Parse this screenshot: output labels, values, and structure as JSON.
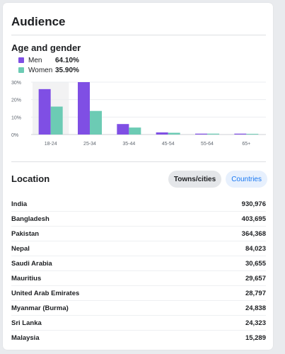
{
  "card": {
    "title": "Audience"
  },
  "age_gender": {
    "title": "Age and gender",
    "legend": [
      {
        "name": "Men",
        "value": "64.10%",
        "color": "#7f4fe4"
      },
      {
        "name": "Women",
        "value": "35.90%",
        "color": "#6ccbb4"
      }
    ]
  },
  "chart_data": {
    "type": "bar",
    "categories": [
      "18-24",
      "25-34",
      "35-44",
      "45-54",
      "55-64",
      "65+"
    ],
    "series": [
      {
        "name": "Men",
        "values": [
          26,
          30,
          6,
          1.2,
          0.5,
          0.5
        ],
        "color": "#7f4fe4"
      },
      {
        "name": "Women",
        "values": [
          16,
          13.5,
          4,
          1,
          0.5,
          0.4
        ],
        "color": "#6ccbb4"
      }
    ],
    "yticks": [
      "0%",
      "10%",
      "20%",
      "30%"
    ],
    "ylim": [
      0,
      30
    ],
    "highlight_category": "18-24",
    "grid": true
  },
  "location": {
    "title": "Location",
    "tabs": {
      "towns": "Towns/cities",
      "countries": "Countries"
    },
    "rows": [
      {
        "name": "India",
        "value": "930,976"
      },
      {
        "name": "Bangladesh",
        "value": "403,695"
      },
      {
        "name": "Pakistan",
        "value": "364,368"
      },
      {
        "name": "Nepal",
        "value": "84,023"
      },
      {
        "name": "Saudi Arabia",
        "value": "30,655"
      },
      {
        "name": "Mauritius",
        "value": "29,657"
      },
      {
        "name": "United Arab Emirates",
        "value": "28,797"
      },
      {
        "name": "Myanmar (Burma)",
        "value": "24,838"
      },
      {
        "name": "Sri Lanka",
        "value": "24,323"
      },
      {
        "name": "Malaysia",
        "value": "15,289"
      }
    ]
  }
}
